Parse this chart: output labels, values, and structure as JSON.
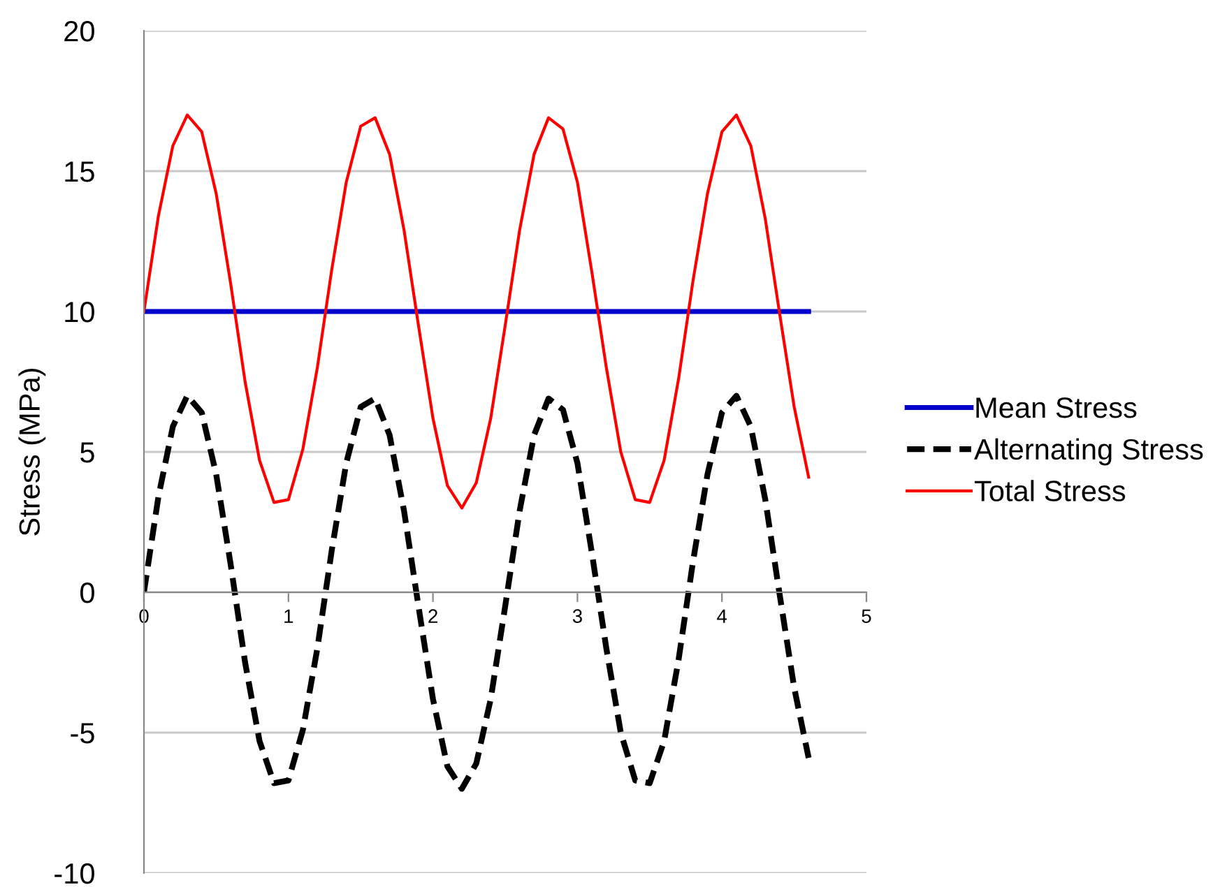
{
  "chart_data": {
    "type": "line",
    "ylabel": "Stress (MPa)",
    "xlim": [
      0,
      5
    ],
    "xticks": [
      0,
      1,
      2,
      3,
      4,
      5
    ],
    "ylim": [
      -10,
      20
    ],
    "yticks": [
      -10,
      -5,
      0,
      5,
      10,
      15,
      20
    ],
    "grid": "y",
    "legend": "right",
    "marker": "none",
    "series": [
      {
        "name": "Mean Stress",
        "color": "#0000cc",
        "line_style": "solid",
        "x": [
          0,
          4.6
        ],
        "values": [
          10,
          10
        ]
      },
      {
        "name": "Alternating Stress",
        "color": "#000000",
        "line_style": "dashed",
        "x": [
          0,
          0.1,
          0.2,
          0.3,
          0.4,
          0.5,
          0.6,
          0.7,
          0.8,
          0.9,
          1.0,
          1.1,
          1.2,
          1.3,
          1.4,
          1.5,
          1.6,
          1.7,
          1.8,
          1.9,
          2.0,
          2.1,
          2.2,
          2.3,
          2.4,
          2.5,
          2.6,
          2.7,
          2.8,
          2.9,
          3.0,
          3.1,
          3.2,
          3.3,
          3.4,
          3.5,
          3.6,
          3.7,
          3.8,
          3.9,
          4.0,
          4.1,
          4.2,
          4.3,
          4.4,
          4.5,
          4.6
        ],
        "values": [
          0,
          3.4,
          5.9,
          7.0,
          6.4,
          4.2,
          1.0,
          -2.5,
          -5.3,
          -6.8,
          -6.7,
          -4.9,
          -2.0,
          1.5,
          4.6,
          6.6,
          6.9,
          5.6,
          2.9,
          -0.5,
          -3.8,
          -6.2,
          -7.0,
          -6.1,
          -3.8,
          -0.5,
          2.9,
          5.6,
          6.9,
          6.5,
          4.6,
          1.4,
          -2.0,
          -5.0,
          -6.7,
          -6.8,
          -5.3,
          -2.4,
          1.1,
          4.2,
          6.4,
          7.0,
          5.9,
          3.3,
          -0.1,
          -3.4,
          -5.9
        ]
      },
      {
        "name": "Total Stress",
        "color": "#ff0000",
        "line_style": "solid",
        "x": [
          0,
          0.1,
          0.2,
          0.3,
          0.4,
          0.5,
          0.6,
          0.7,
          0.8,
          0.9,
          1.0,
          1.1,
          1.2,
          1.3,
          1.4,
          1.5,
          1.6,
          1.7,
          1.8,
          1.9,
          2.0,
          2.1,
          2.2,
          2.3,
          2.4,
          2.5,
          2.6,
          2.7,
          2.8,
          2.9,
          3.0,
          3.1,
          3.2,
          3.3,
          3.4,
          3.5,
          3.6,
          3.7,
          3.8,
          3.9,
          4.0,
          4.1,
          4.2,
          4.3,
          4.4,
          4.5,
          4.6
        ],
        "values": [
          10,
          13.4,
          15.9,
          17.0,
          16.4,
          14.2,
          11.0,
          7.5,
          4.7,
          3.2,
          3.3,
          5.1,
          8.0,
          11.5,
          14.6,
          16.6,
          16.9,
          15.6,
          12.9,
          9.5,
          6.2,
          3.8,
          3.0,
          3.9,
          6.2,
          9.5,
          12.9,
          15.6,
          16.9,
          16.5,
          14.6,
          11.4,
          8.0,
          5.0,
          3.3,
          3.2,
          4.7,
          7.6,
          11.1,
          14.2,
          16.4,
          17.0,
          15.9,
          13.3,
          9.9,
          6.6,
          4.1
        ]
      }
    ]
  }
}
